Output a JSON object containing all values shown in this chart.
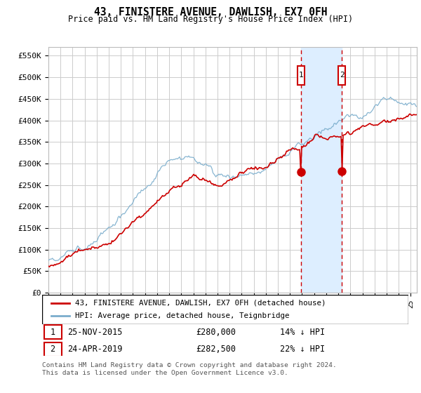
{
  "title": "43, FINISTERE AVENUE, DAWLISH, EX7 0FH",
  "subtitle": "Price paid vs. HM Land Registry's House Price Index (HPI)",
  "ylabel_ticks": [
    0,
    50000,
    100000,
    150000,
    200000,
    250000,
    300000,
    350000,
    400000,
    450000,
    500000,
    550000
  ],
  "ylabel_labels": [
    "£0",
    "£50K",
    "£100K",
    "£150K",
    "£200K",
    "£250K",
    "£300K",
    "£350K",
    "£400K",
    "£450K",
    "£500K",
    "£550K"
  ],
  "ylim": [
    0,
    570000
  ],
  "xlim_start": 1995.0,
  "xlim_end": 2025.5,
  "sale1_date": 2015.9,
  "sale1_price": 280000,
  "sale1_label": "25-NOV-2015",
  "sale1_amount": "£280,000",
  "sale1_pct": "14% ↓ HPI",
  "sale2_date": 2019.3,
  "sale2_price": 282500,
  "sale2_label": "24-APR-2019",
  "sale2_amount": "£282,500",
  "sale2_pct": "22% ↓ HPI",
  "hpi_color": "#7aadcc",
  "price_color": "#cc0000",
  "shade_color": "#ddeeff",
  "legend_label1": "43, FINISTERE AVENUE, DAWLISH, EX7 0FH (detached house)",
  "legend_label2": "HPI: Average price, detached house, Teignbridge",
  "footnote": "Contains HM Land Registry data © Crown copyright and database right 2024.\nThis data is licensed under the Open Government Licence v3.0.",
  "grid_color": "#cccccc",
  "background_color": "#ffffff"
}
